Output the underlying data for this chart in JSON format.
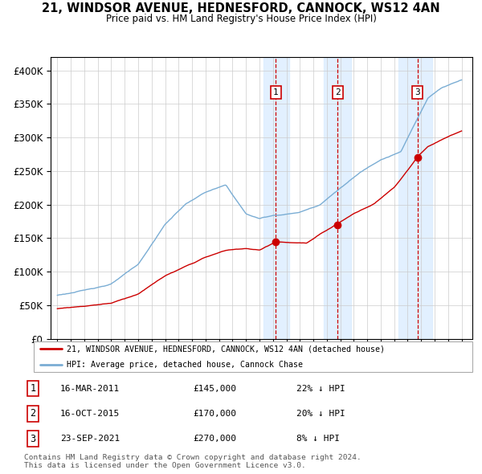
{
  "title": "21, WINDSOR AVENUE, HEDNESFORD, CANNOCK, WS12 4AN",
  "subtitle": "Price paid vs. HM Land Registry's House Price Index (HPI)",
  "legend_line1": "21, WINDSOR AVENUE, HEDNESFORD, CANNOCK, WS12 4AN (detached house)",
  "legend_line2": "HPI: Average price, detached house, Cannock Chase",
  "transactions": [
    {
      "num": 1,
      "date": "16-MAR-2011",
      "price": 145000,
      "hpi_diff": "22% ↓ HPI",
      "year": 2011.21
    },
    {
      "num": 2,
      "date": "16-OCT-2015",
      "price": 170000,
      "hpi_diff": "20% ↓ HPI",
      "year": 2015.79
    },
    {
      "num": 3,
      "date": "23-SEP-2021",
      "price": 270000,
      "hpi_diff": "8% ↓ HPI",
      "year": 2021.73
    }
  ],
  "red_line_color": "#cc0000",
  "blue_line_color": "#7aadd4",
  "vline_color": "#cc0000",
  "shade_color": "#ddeeff",
  "footer": "Contains HM Land Registry data © Crown copyright and database right 2024.\nThis data is licensed under the Open Government Licence v3.0.",
  "ylim": [
    0,
    420000
  ],
  "yticks": [
    0,
    50000,
    100000,
    150000,
    200000,
    250000,
    300000,
    350000,
    400000
  ],
  "start_year": 1995,
  "end_year": 2025
}
